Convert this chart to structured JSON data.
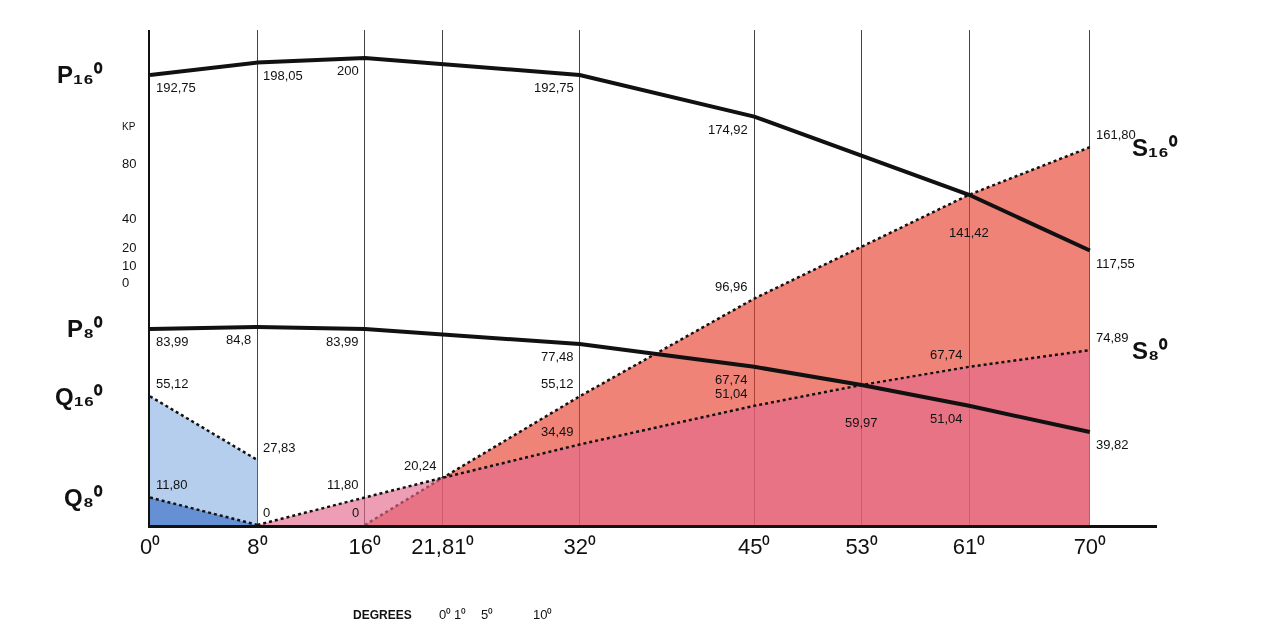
{
  "chart_data": {
    "type": "line",
    "xlabel": "DEGREES",
    "ylabel": "KP",
    "xlim": [
      0,
      75
    ],
    "ylim": [
      0,
      212
    ],
    "xticks": [
      {
        "value": 0,
        "label": "0⁰"
      },
      {
        "value": 8,
        "label": "8⁰"
      },
      {
        "value": 16,
        "label": "16⁰"
      },
      {
        "value": 21.81,
        "label": "21,81⁰"
      },
      {
        "value": 32,
        "label": "32⁰"
      },
      {
        "value": 45,
        "label": "45⁰"
      },
      {
        "value": 53,
        "label": "53⁰"
      },
      {
        "value": 61,
        "label": "61⁰"
      },
      {
        "value": 70,
        "label": "70⁰"
      }
    ],
    "tick_labels": "x",
    "grid": "x",
    "legend": false,
    "series": [
      {
        "name": "S₁₆⁰",
        "type": "area",
        "color": "#e8402f",
        "line_style": "dotted",
        "x": [
          16,
          21.81,
          32,
          45,
          61,
          70
        ],
        "values": [
          0,
          20.24,
          55.12,
          96.96,
          141.42,
          161.8
        ],
        "value_labels": [
          "0",
          null,
          "55,12",
          "96,96",
          null,
          "161,80"
        ]
      },
      {
        "name": "S₈⁰",
        "type": "area",
        "color": "#e36a8c",
        "line_style": "dotted",
        "x": [
          8,
          16,
          21.81,
          32,
          45,
          53,
          61,
          70
        ],
        "values": [
          0,
          11.8,
          20.24,
          34.49,
          51.04,
          59.97,
          67.74,
          74.89
        ],
        "value_labels": [
          null,
          "11,80",
          "20,24",
          "34,49",
          "51,04",
          null,
          "67,74",
          "74,89"
        ]
      },
      {
        "name": "Q₁₆⁰",
        "type": "area",
        "color": "#8fb4e3",
        "line_style": "dotted",
        "x": [
          0,
          8
        ],
        "values": [
          55.12,
          27.83
        ],
        "value_labels": [
          "55,12",
          "27,83"
        ]
      },
      {
        "name": "Q₈⁰",
        "type": "area",
        "color": "#3a6fc4",
        "line_style": "dotted",
        "x": [
          0,
          8
        ],
        "values": [
          11.8,
          0
        ],
        "value_labels": [
          "11,80",
          "0"
        ]
      },
      {
        "name": "P₁₆⁰",
        "color": "#111111",
        "line_style": "solid",
        "x": [
          0,
          8,
          16,
          32,
          45,
          61,
          70
        ],
        "values": [
          192.75,
          198.05,
          200,
          192.75,
          174.92,
          141.42,
          117.55
        ],
        "value_labels": [
          "192,75",
          "198,05",
          "200",
          "192,75",
          "174,92",
          "141,42",
          "117,55"
        ]
      },
      {
        "name": "P₈⁰",
        "color": "#111111",
        "line_style": "solid",
        "x": [
          0,
          8,
          16,
          32,
          45,
          53,
          61,
          70
        ],
        "values": [
          83.99,
          84.8,
          83.99,
          77.48,
          67.74,
          59.97,
          51.04,
          39.82
        ],
        "value_labels": [
          "83,99",
          "84,8",
          "83,99",
          "77,48",
          "67,74",
          "59,97",
          "51,04",
          "39,82"
        ]
      }
    ],
    "annotations": [
      "80",
      "40",
      "20",
      "10",
      "0",
      "0⁰",
      "1⁰",
      "5⁰",
      "10⁰"
    ]
  }
}
